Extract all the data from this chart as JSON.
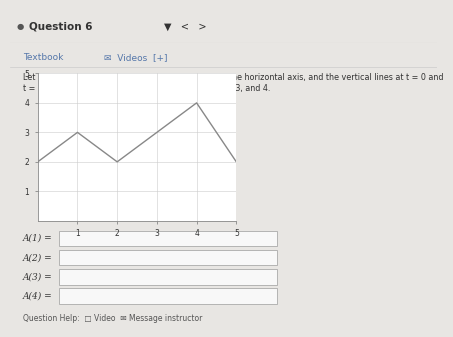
{
  "graph_x": [
    0,
    1,
    2,
    4,
    5
  ],
  "graph_y": [
    2,
    3,
    2,
    4,
    2
  ],
  "xlim": [
    0,
    5
  ],
  "ylim": [
    0,
    5
  ],
  "xticks": [
    1,
    2,
    3,
    4,
    5
  ],
  "yticks": [
    1,
    2,
    3,
    4,
    5
  ],
  "graph_color": "#888888",
  "graph_linewidth": 1.0,
  "bg_color": "#e8e6e3",
  "panel_color": "#f5f4f2",
  "white_color": "#ffffff",
  "title_text": "Question 6",
  "nav_text": "▼   <   >",
  "textbook_label": "Textbook",
  "videos_label": "Videos  [+]",
  "description_line1": "Let A(x) represent the area bounded by the graph, the horizontal axis, and the vertical lines at t = 0 and",
  "description_line2": "t = x for the graph below. Evaluate A(x) for x = 1, 2, 3, and 4.",
  "answer_labels": [
    "A(1) =",
    "A(2) =",
    "A(3) =",
    "A(4) ="
  ],
  "question_help": "Question Help:  □ Video  ✉ Message instructor",
  "grid_color": "#cccccc",
  "axis_color": "#888888",
  "text_color": "#333333",
  "link_color": "#5577aa",
  "separator_color": "#cccccc"
}
